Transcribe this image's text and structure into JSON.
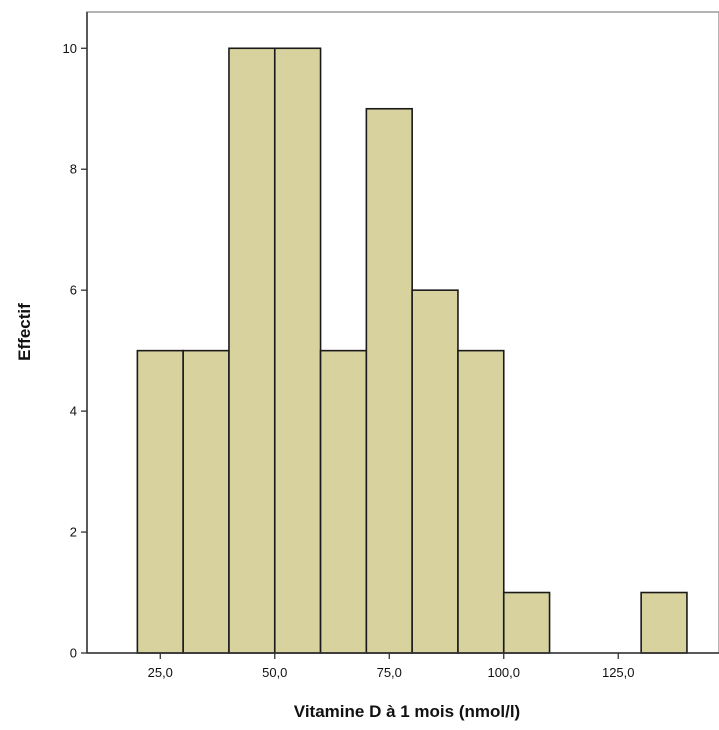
{
  "chart_data": {
    "type": "bar",
    "title": "",
    "xlabel": "Vitamine D à 1 mois (nmol/l)",
    "ylabel": "Effectif",
    "bins": [
      {
        "start": 20,
        "end": 30,
        "count": 5
      },
      {
        "start": 30,
        "end": 40,
        "count": 5
      },
      {
        "start": 40,
        "end": 50,
        "count": 10
      },
      {
        "start": 50,
        "end": 60,
        "count": 10
      },
      {
        "start": 60,
        "end": 70,
        "count": 5
      },
      {
        "start": 70,
        "end": 80,
        "count": 9
      },
      {
        "start": 80,
        "end": 90,
        "count": 6
      },
      {
        "start": 90,
        "end": 100,
        "count": 5
      },
      {
        "start": 100,
        "end": 110,
        "count": 1
      },
      {
        "start": 130,
        "end": 140,
        "count": 1
      }
    ],
    "xlim": [
      9,
      147
    ],
    "ylim": [
      0,
      10.6
    ],
    "x_ticks": [
      {
        "value": 25,
        "label": "25,0"
      },
      {
        "value": 50,
        "label": "50,0"
      },
      {
        "value": 75,
        "label": "75,0"
      },
      {
        "value": 100,
        "label": "100,0"
      },
      {
        "value": 125,
        "label": "125,0"
      }
    ],
    "y_ticks": [
      {
        "value": 0,
        "label": "0"
      },
      {
        "value": 2,
        "label": "2"
      },
      {
        "value": 4,
        "label": "4"
      },
      {
        "value": 6,
        "label": "6"
      },
      {
        "value": 8,
        "label": "8"
      },
      {
        "value": 10,
        "label": "10"
      }
    ],
    "grid": false,
    "legend": "none",
    "colors": {
      "bar_fill": "#d8d29f",
      "bar_stroke": "#1a1a1a",
      "axis": "#333333",
      "frame": "#9a9a9a"
    }
  }
}
